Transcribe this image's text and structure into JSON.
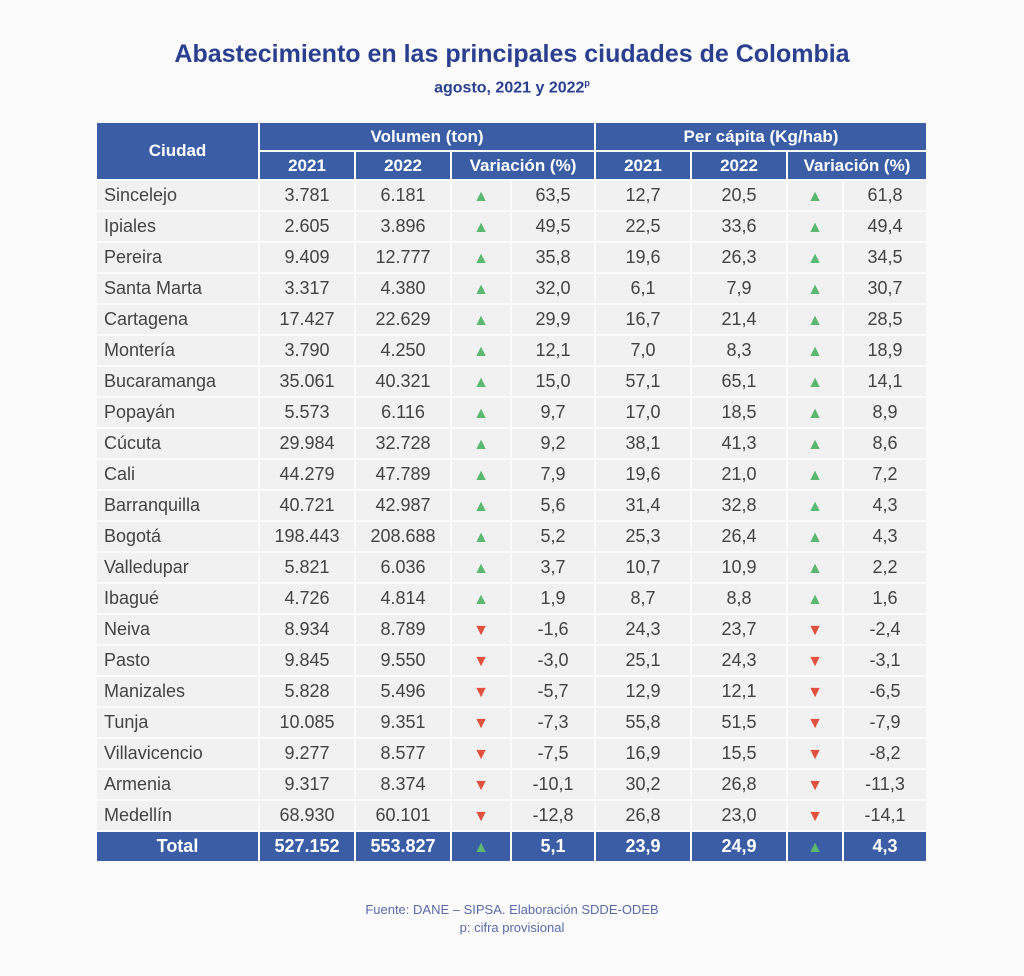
{
  "title": "Abastecimiento en las principales ciudades de Colombia",
  "subtitle": "agosto, 2021 y 2022",
  "subtitle_sup": "p",
  "headers": {
    "city": "Ciudad",
    "volume": "Volumen (ton)",
    "percapita": "Per cápita (Kg/hab)",
    "y2021": "2021",
    "y2022": "2022",
    "variation": "Variación (%)"
  },
  "colors": {
    "header": "#3a5da5",
    "up": "#5cb870",
    "down": "#e0523f"
  },
  "rows": [
    [
      "Sincelejo",
      "3.781",
      "6.181",
      "up",
      "63,5",
      "12,7",
      "20,5",
      "up",
      "61,8"
    ],
    [
      "Ipiales",
      "2.605",
      "3.896",
      "up",
      "49,5",
      "22,5",
      "33,6",
      "up",
      "49,4"
    ],
    [
      "Pereira",
      "9.409",
      "12.777",
      "up",
      "35,8",
      "19,6",
      "26,3",
      "up",
      "34,5"
    ],
    [
      "Santa Marta",
      "3.317",
      "4.380",
      "up",
      "32,0",
      "6,1",
      "7,9",
      "up",
      "30,7"
    ],
    [
      "Cartagena",
      "17.427",
      "22.629",
      "up",
      "29,9",
      "16,7",
      "21,4",
      "up",
      "28,5"
    ],
    [
      "Montería",
      "3.790",
      "4.250",
      "up",
      "12,1",
      "7,0",
      "8,3",
      "up",
      "18,9"
    ],
    [
      "Bucaramanga",
      "35.061",
      "40.321",
      "up",
      "15,0",
      "57,1",
      "65,1",
      "up",
      "14,1"
    ],
    [
      "Popayán",
      "5.573",
      "6.116",
      "up",
      "9,7",
      "17,0",
      "18,5",
      "up",
      "8,9"
    ],
    [
      "Cúcuta",
      "29.984",
      "32.728",
      "up",
      "9,2",
      "38,1",
      "41,3",
      "up",
      "8,6"
    ],
    [
      "Cali",
      "44.279",
      "47.789",
      "up",
      "7,9",
      "19,6",
      "21,0",
      "up",
      "7,2"
    ],
    [
      "Barranquilla",
      "40.721",
      "42.987",
      "up",
      "5,6",
      "31,4",
      "32,8",
      "up",
      "4,3"
    ],
    [
      "Bogotá",
      "198.443",
      "208.688",
      "up",
      "5,2",
      "25,3",
      "26,4",
      "up",
      "4,3"
    ],
    [
      "Valledupar",
      "5.821",
      "6.036",
      "up",
      "3,7",
      "10,7",
      "10,9",
      "up",
      "2,2"
    ],
    [
      "Ibagué",
      "4.726",
      "4.814",
      "up",
      "1,9",
      "8,7",
      "8,8",
      "up",
      "1,6"
    ],
    [
      "Neiva",
      "8.934",
      "8.789",
      "down",
      "-1,6",
      "24,3",
      "23,7",
      "down",
      "-2,4"
    ],
    [
      "Pasto",
      "9.845",
      "9.550",
      "down",
      "-3,0",
      "25,1",
      "24,3",
      "down",
      "-3,1"
    ],
    [
      "Manizales",
      "5.828",
      "5.496",
      "down",
      "-5,7",
      "12,9",
      "12,1",
      "down",
      "-6,5"
    ],
    [
      "Tunja",
      "10.085",
      "9.351",
      "down",
      "-7,3",
      "55,8",
      "51,5",
      "down",
      "-7,9"
    ],
    [
      "Villavicencio",
      "9.277",
      "8.577",
      "down",
      "-7,5",
      "16,9",
      "15,5",
      "down",
      "-8,2"
    ],
    [
      "Armenia",
      "9.317",
      "8.374",
      "down",
      "-10,1",
      "30,2",
      "26,8",
      "down",
      "-11,3"
    ],
    [
      "Medellín",
      "68.930",
      "60.101",
      "down",
      "-12,8",
      "26,8",
      "23,0",
      "down",
      "-14,1"
    ]
  ],
  "total": [
    "Total",
    "527.152",
    "553.827",
    "up",
    "5,1",
    "23,9",
    "24,9",
    "up",
    "4,3"
  ],
  "footer": {
    "source": "Fuente: DANE – SIPSA. Elaboración SDDE-ODEB",
    "note": "p: cifra provisional"
  }
}
